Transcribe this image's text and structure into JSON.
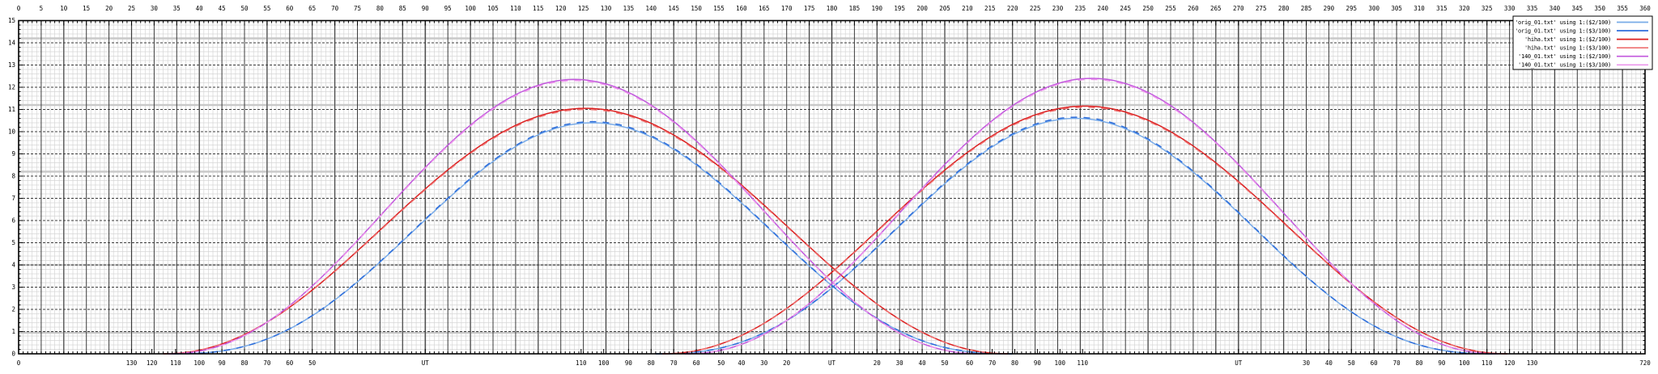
{
  "chart_data": {
    "type": "line",
    "title": "",
    "description": "gnuplot-style plot: six bell curves (two passes each, wrapped time axis) over a dense gray grid",
    "background": "#ffffff",
    "y_axis": {
      "range": [
        0,
        15
      ],
      "tick_step": 1,
      "minor_per_unit": 5
    },
    "x_top_axis": {
      "range": [
        0,
        360
      ],
      "tick_step": 5
    },
    "x_bottom_axis": {
      "range": [
        0,
        720
      ],
      "end_tick_labels": [
        {
          "x": 0,
          "label": "0"
        },
        {
          "x": 720,
          "label": "720"
        }
      ],
      "custom_ticks": [
        {
          "x": 50,
          "label": "130"
        },
        {
          "x": 59,
          "label": "120"
        },
        {
          "x": 69.5,
          "label": "110"
        },
        {
          "x": 80,
          "label": "100"
        },
        {
          "x": 90,
          "label": "90"
        },
        {
          "x": 100,
          "label": "80"
        },
        {
          "x": 110,
          "label": "70"
        },
        {
          "x": 120,
          "label": "60"
        },
        {
          "x": 130,
          "label": "50"
        },
        {
          "x": 180,
          "label": "UT",
          "major": true
        },
        {
          "x": 249,
          "label": "110"
        },
        {
          "x": 259,
          "label": "100"
        },
        {
          "x": 270,
          "label": "90"
        },
        {
          "x": 280,
          "label": "80"
        },
        {
          "x": 290,
          "label": "70"
        },
        {
          "x": 300,
          "label": "60"
        },
        {
          "x": 311,
          "label": "50"
        },
        {
          "x": 320,
          "label": "40"
        },
        {
          "x": 330,
          "label": "30"
        },
        {
          "x": 340,
          "label": "20"
        },
        {
          "x": 360,
          "label": "UT",
          "major": true
        },
        {
          "x": 380,
          "label": "20"
        },
        {
          "x": 390,
          "label": "30"
        },
        {
          "x": 400,
          "label": "40"
        },
        {
          "x": 410,
          "label": "50"
        },
        {
          "x": 421,
          "label": "60"
        },
        {
          "x": 431,
          "label": "70"
        },
        {
          "x": 441,
          "label": "80"
        },
        {
          "x": 451,
          "label": "90"
        },
        {
          "x": 461,
          "label": "100"
        },
        {
          "x": 471,
          "label": "110"
        },
        {
          "x": 540,
          "label": "UT",
          "major": true
        },
        {
          "x": 570,
          "label": "30"
        },
        {
          "x": 580,
          "label": "40"
        },
        {
          "x": 590,
          "label": "50"
        },
        {
          "x": 600,
          "label": "60"
        },
        {
          "x": 610,
          "label": "70"
        },
        {
          "x": 620,
          "label": "80"
        },
        {
          "x": 630,
          "label": "90"
        },
        {
          "x": 640,
          "label": "100"
        },
        {
          "x": 650,
          "label": "110"
        },
        {
          "x": 660,
          "label": "120"
        },
        {
          "x": 670,
          "label": "130"
        }
      ],
      "gray_guide_verticals": {
        "start": 20,
        "step": 30
      }
    },
    "guide_lines_y": [
      0.95,
      4.0,
      8.2,
      11.2,
      14.2
    ],
    "model_note": "y(x) = peak * cos(pi*(x-center)/(2*half_width))^power for |x-center| <= half_width; each series is drawn twice (two day passes on a wrapped 0-720 axis)",
    "series": [
      {
        "name": "'orig_01.txt' using 1:($2/100)",
        "color": "#79abe8",
        "dashed": false,
        "power": 2.6,
        "half_width": 186,
        "humps": [
          {
            "center": 254,
            "peak": 10.4
          },
          {
            "center": 468,
            "peak": 10.6
          }
        ]
      },
      {
        "name": "'orig_01.txt' using 1:($3/100)",
        "color": "#2e6edb",
        "dashed": true,
        "power": 2.6,
        "half_width": 186,
        "humps": [
          {
            "center": 254,
            "peak": 10.45
          },
          {
            "center": 468,
            "peak": 10.65
          }
        ]
      },
      {
        "name": "'hiha.txt' using 1:($2/100)",
        "color": "#dc1f1f",
        "dashed": false,
        "power": 2.1,
        "half_width": 187,
        "humps": [
          {
            "center": 251,
            "peak": 11.05
          },
          {
            "center": 472,
            "peak": 11.15
          }
        ]
      },
      {
        "name": "'hiha.txt' using 1:($3/100)",
        "color": "#ee6f6f",
        "dashed": true,
        "power": 2.1,
        "half_width": 187,
        "humps": [
          {
            "center": 251,
            "peak": 11.0
          },
          {
            "center": 472,
            "peak": 11.1
          }
        ]
      },
      {
        "name": "'140_01.txt' using 1:($2/100)",
        "color": "#c257dd",
        "dashed": false,
        "power": 2.2,
        "half_width": 180,
        "humps": [
          {
            "center": 246,
            "peak": 12.35
          },
          {
            "center": 475,
            "peak": 12.4
          }
        ]
      },
      {
        "name": "'140_01.txt' using 1:($3/100)",
        "color": "#ec96ec",
        "dashed": true,
        "power": 2.2,
        "half_width": 180,
        "humps": [
          {
            "center": 246,
            "peak": 12.3
          },
          {
            "center": 475,
            "peak": 12.35
          }
        ]
      }
    ],
    "legend": {
      "position": "top-right",
      "entries": [
        {
          "label": "'orig_01.txt' using 1:($2/100)",
          "color": "#79abe8"
        },
        {
          "label": "'orig_01.txt' using 1:($3/100)",
          "color": "#2e6edb"
        },
        {
          "label": "'hiha.txt' using 1:($2/100)",
          "color": "#dc1f1f"
        },
        {
          "label": "'hiha.txt' using 1:($3/100)",
          "color": "#ee6f6f"
        },
        {
          "label": "'140_01.txt' using 1:($2/100)",
          "color": "#c257dd"
        },
        {
          "label": "'140_01.txt' using 1:($3/100)",
          "color": "#ec96ec"
        }
      ]
    }
  },
  "colors": {
    "border": "#000000",
    "grid_major": "#3c3c3c",
    "grid_minor": "#d6d6d6",
    "guide_gray_v": "#b4b4b4",
    "guide_gray_h": "#c9c9c9",
    "text": "#000000",
    "legend_bg": "#ffffff"
  }
}
